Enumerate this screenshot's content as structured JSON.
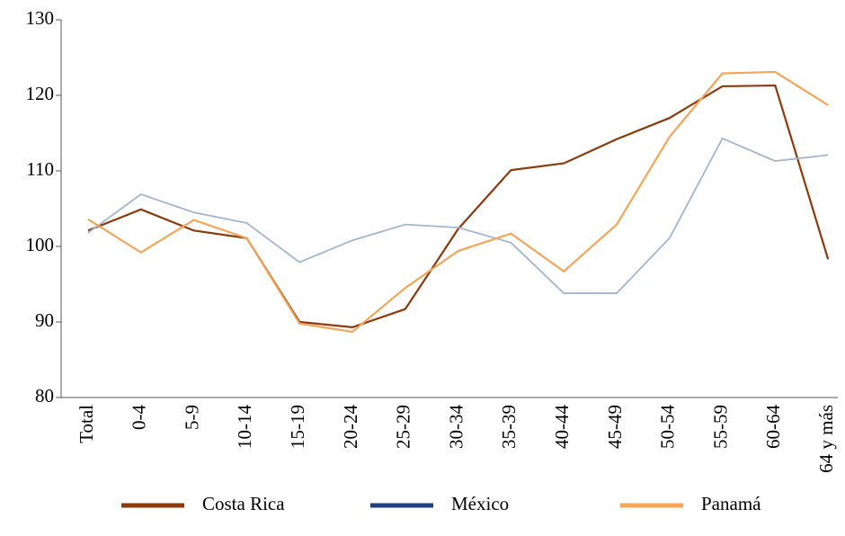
{
  "chart_data": {
    "type": "line",
    "categories": [
      "Total",
      "0-4",
      "5-9",
      "10-14",
      "15-19",
      "20-24",
      "25-29",
      "30-34",
      "35-39",
      "40-44",
      "45-49",
      "50-54",
      "55-59",
      "60-64",
      "64 y más"
    ],
    "series": [
      {
        "name": "Costa Rica",
        "color": "#8b3a0e",
        "legend_color": "#8b3a0e",
        "values": [
          102.1,
          104.9,
          102.1,
          101.1,
          90,
          89.3,
          91.7,
          102.3,
          110.1,
          111,
          114.2,
          117,
          121.2,
          121.3,
          98.3
        ]
      },
      {
        "name": "México",
        "color": "#a3b6cd",
        "legend_color": "#1f3f7f",
        "values": [
          101.8,
          106.9,
          104.5,
          103.1,
          97.9,
          100.8,
          102.9,
          102.5,
          100.5,
          93.8,
          93.8,
          101.1,
          114.3,
          111.3,
          112.1
        ]
      },
      {
        "name": "Panamá",
        "color": "#f4a55a",
        "legend_color": "#f4a55a",
        "values": [
          103.6,
          99.2,
          103.5,
          101.1,
          89.8,
          88.7,
          94.5,
          99.4,
          101.7,
          96.7,
          102.9,
          114.5,
          122.9,
          123.1,
          118.7
        ]
      }
    ],
    "ylim": [
      80,
      130
    ],
    "yticks": [
      80,
      90,
      100,
      110,
      120,
      130
    ]
  }
}
